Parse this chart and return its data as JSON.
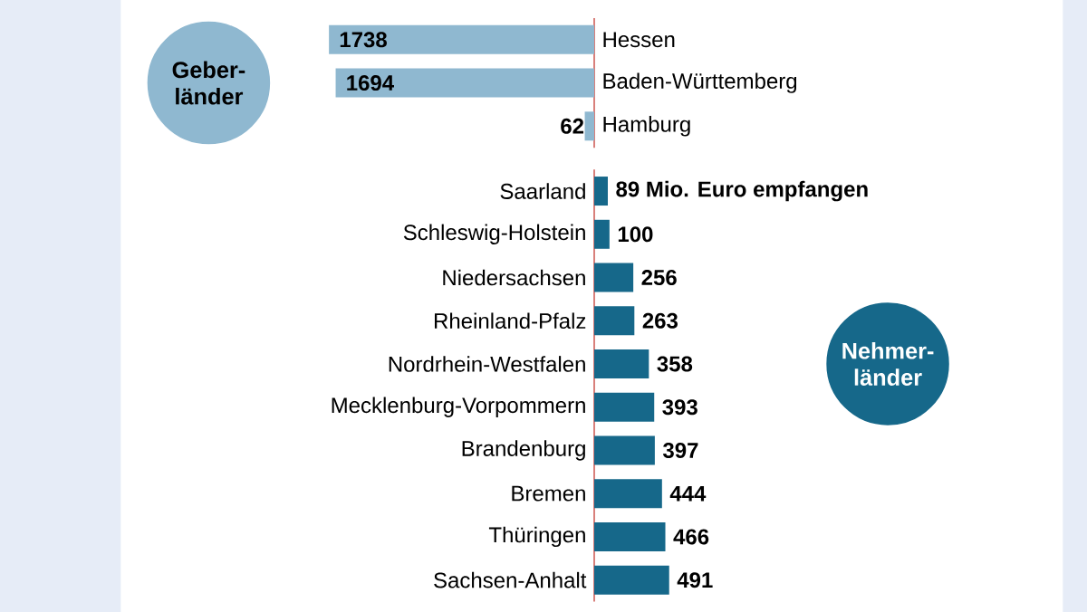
{
  "chart_data": [
    {
      "type": "bar",
      "orientation": "horizontal",
      "categories": [
        "Hessen",
        "Baden-Württemberg",
        "Hamburg"
      ],
      "values": [
        1738,
        1694,
        62
      ],
      "color": "#8fb8d0",
      "value_labels": [
        "1738",
        "1694",
        "62"
      ],
      "tick_labels": "y",
      "annotations": [
        "Geber- länder"
      ]
    },
    {
      "type": "bar",
      "orientation": "horizontal",
      "categories": [
        "Saarland",
        "Schleswig-Holstein",
        "Niedersachsen",
        "Rheinland-Pfalz",
        "Nordrhein-Westfalen",
        "Mecklenburg-Vorpommern",
        "Brandenburg",
        "Bremen",
        "Thüringen",
        "Sachsen-Anhalt"
      ],
      "values": [
        89,
        100,
        256,
        263,
        358,
        393,
        397,
        444,
        466,
        491
      ],
      "color": "#16688a",
      "value_labels": [
        "89 Mio. Euro empfangen",
        "100",
        "256",
        "263",
        "358",
        "393",
        "397",
        "444",
        "466",
        "491"
      ],
      "tick_labels": "y",
      "annotations": [
        "Nehmer- länder"
      ]
    }
  ]
}
